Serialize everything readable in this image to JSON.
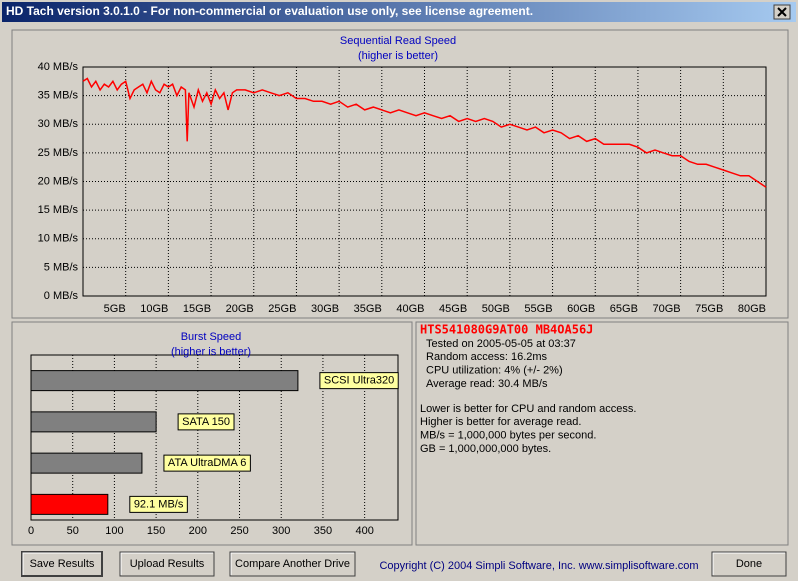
{
  "window": {
    "title": "HD Tach version 3.0.1.0  - For non-commercial or evaluation use only, see license agreement."
  },
  "chart_data": [
    {
      "type": "line",
      "title": "Sequential Read Speed",
      "subtitle": "(higher is better)",
      "color": "#ff0000",
      "grid": true,
      "x": [
        0,
        0.5,
        1,
        1.5,
        2,
        2.5,
        3,
        3.5,
        4,
        4.5,
        5,
        5.5,
        6,
        6.5,
        7,
        7.5,
        8,
        8.5,
        9,
        9.5,
        10,
        10.5,
        11,
        11.5,
        12,
        12.2,
        12.4,
        13,
        13.5,
        14,
        14.5,
        15,
        15.5,
        16,
        16.5,
        17,
        17.5,
        18,
        19,
        20,
        21,
        22,
        23,
        24,
        25,
        26,
        27,
        28,
        29,
        30,
        31,
        32,
        33,
        34,
        35,
        36,
        37,
        38,
        39,
        40,
        41,
        42,
        43,
        44,
        45,
        46,
        47,
        48,
        49,
        50,
        51,
        52,
        53,
        54,
        55,
        56,
        57,
        58,
        59,
        60,
        61,
        62,
        63,
        64,
        65,
        66,
        67,
        68,
        69,
        70,
        71,
        72,
        73,
        74,
        75,
        76,
        77,
        78,
        79,
        80
      ],
      "values": [
        37.5,
        38,
        36.5,
        37.5,
        36,
        37,
        36.5,
        37.5,
        36,
        37,
        37.5,
        34.5,
        36,
        36.5,
        37,
        35.5,
        37.5,
        36,
        35.5,
        37,
        36.5,
        37,
        35,
        36.5,
        36,
        27,
        35.5,
        33,
        36,
        34,
        35.5,
        33.5,
        36,
        34.5,
        35.5,
        32.5,
        35.5,
        36,
        36,
        35.5,
        36,
        35.5,
        35,
        35.5,
        34.5,
        34.5,
        34,
        34,
        33.5,
        34,
        33,
        33.5,
        32.5,
        33,
        32.5,
        32,
        32.5,
        32,
        31.5,
        32,
        31.5,
        31,
        31.5,
        30.5,
        31,
        30.5,
        31,
        30.5,
        29.5,
        30,
        29.5,
        29,
        29.5,
        28.5,
        29,
        28.5,
        27.5,
        28,
        27,
        27.5,
        26.5,
        26.5,
        26.5,
        26.5,
        26,
        25,
        25.5,
        25,
        24.5,
        24.5,
        23.5,
        23,
        23,
        22.5,
        22,
        21.5,
        21,
        21,
        20,
        19
      ],
      "xlim": [
        0,
        80
      ],
      "xticks": [
        {
          "value": 5,
          "label": "5GB"
        },
        {
          "value": 10,
          "label": "10GB"
        },
        {
          "value": 15,
          "label": "15GB"
        },
        {
          "value": 20,
          "label": "20GB"
        },
        {
          "value": 25,
          "label": "25GB"
        },
        {
          "value": 30,
          "label": "30GB"
        },
        {
          "value": 35,
          "label": "35GB"
        },
        {
          "value": 40,
          "label": "40GB"
        },
        {
          "value": 45,
          "label": "45GB"
        },
        {
          "value": 50,
          "label": "50GB"
        },
        {
          "value": 55,
          "label": "55GB"
        },
        {
          "value": 60,
          "label": "60GB"
        },
        {
          "value": 65,
          "label": "65GB"
        },
        {
          "value": 70,
          "label": "70GB"
        },
        {
          "value": 75,
          "label": "75GB"
        },
        {
          "value": 80,
          "label": "80GB"
        }
      ],
      "ylim": [
        0,
        40
      ],
      "yticks": [
        {
          "value": 0,
          "label": "0 MB/s"
        },
        {
          "value": 5,
          "label": "5 MB/s"
        },
        {
          "value": 10,
          "label": "10 MB/s"
        },
        {
          "value": 15,
          "label": "15 MB/s"
        },
        {
          "value": 20,
          "label": "20 MB/s"
        },
        {
          "value": 25,
          "label": "25 MB/s"
        },
        {
          "value": 30,
          "label": "30 MB/s"
        },
        {
          "value": 35,
          "label": "35 MB/s"
        },
        {
          "value": 40,
          "label": "40 MB/s"
        }
      ]
    },
    {
      "type": "bar",
      "orientation": "horizontal",
      "title": "Burst Speed",
      "subtitle": "(higher is better)",
      "grid": true,
      "categories": [
        "SCSI Ultra320",
        "SATA 150",
        "ATA UltraDMA 6",
        null
      ],
      "values": [
        320,
        150,
        133,
        92.1
      ],
      "value_labels": [
        null,
        null,
        null,
        "92.1 MB/s"
      ],
      "colors": [
        "#808080",
        "#808080",
        "#808080",
        "#ff0000"
      ],
      "xlim": [
        0,
        440
      ],
      "xticks": [
        0,
        50,
        100,
        150,
        200,
        250,
        300,
        350,
        400
      ]
    }
  ],
  "info": {
    "drive": "HTS541080G9AT00 MB4OA56J",
    "lines": [
      "Tested on 2005-05-05 at 03:37",
      "Random access: 16.2ms",
      "CPU utilization: 4% (+/- 2%)",
      "Average read: 30.4 MB/s"
    ],
    "notes": [
      "Lower is better for CPU and random access.",
      "Higher is better for average read.",
      "MB/s = 1,000,000 bytes per second.",
      "GB = 1,000,000,000 bytes."
    ]
  },
  "buttons": [
    "Save Results",
    "Upload Results",
    "Compare Another Drive",
    "Done"
  ],
  "copyright": "Copyright (C) 2004 Simpli Software, Inc. www.simplisoftware.com"
}
